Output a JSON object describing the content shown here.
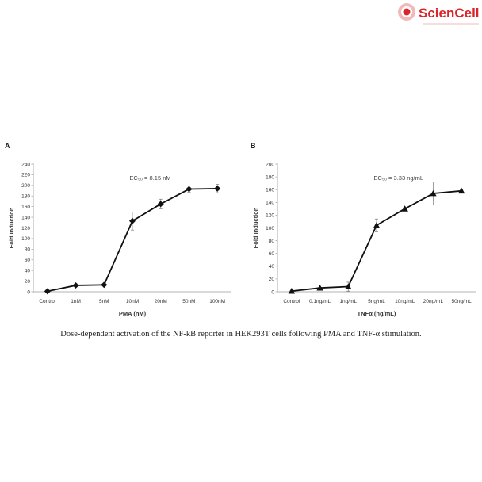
{
  "logo": {
    "text": "ScienCell",
    "colors": {
      "primary": "#d9252a",
      "accent": "#f3b9b9"
    }
  },
  "caption": "Dose-dependent activation of the NF-kB reporter in HEK293T cells following PMA and TNF-α stimulation.",
  "chart_data": [
    {
      "type": "line",
      "panel_label": "A",
      "annotation": "EC₅₀ = 8.15 nM",
      "xlabel": "PMA (nM)",
      "ylabel": "Fold Induction",
      "categories": [
        "Control",
        "1nM",
        "5nM",
        "10nM",
        "20nM",
        "50nM",
        "100nM"
      ],
      "values": [
        1,
        12,
        13,
        133,
        165,
        193,
        194
      ],
      "errors": [
        1,
        2,
        2,
        17,
        9,
        6,
        8
      ],
      "ylim": [
        0,
        240
      ],
      "yticks": [
        0,
        20,
        40,
        60,
        80,
        100,
        120,
        140,
        160,
        180,
        200,
        220,
        240
      ],
      "marker": "diamond",
      "grid": false
    },
    {
      "type": "line",
      "panel_label": "B",
      "annotation": "EC₅₀ = 3.33 ng/mL",
      "xlabel": "TNFα (ng/mL)",
      "ylabel": "Fold Induction",
      "categories": [
        "Control",
        "0.1ng/mL",
        "1ng/mL",
        "5ng/mL",
        "10ng/mL",
        "20ng/mL",
        "50ng/mL"
      ],
      "values": [
        1,
        6,
        8,
        104,
        130,
        154,
        158
      ],
      "errors": [
        1,
        1,
        7,
        10,
        2,
        18,
        2
      ],
      "ylim": [
        0,
        200
      ],
      "yticks": [
        0,
        20,
        40,
        60,
        80,
        100,
        120,
        140,
        160,
        180,
        200
      ],
      "marker": "triangle",
      "grid": false
    }
  ]
}
